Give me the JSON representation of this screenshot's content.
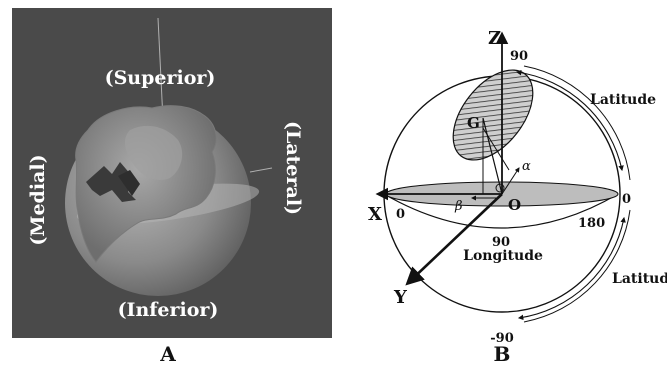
{
  "panel_a": {
    "caption": "A",
    "labels": {
      "superior": "(Superior)",
      "inferior": "(Inferior)",
      "medial": "(Medial)",
      "lateral": "(Lateral)"
    },
    "colors": {
      "background": "#4a4a4a",
      "sphere": "#8c8c8c",
      "text": "#ffffff"
    }
  },
  "panel_b": {
    "caption": "B",
    "axes": {
      "z": "Z",
      "x": "X",
      "y": "Y"
    },
    "points": {
      "origin": "O",
      "g": "G"
    },
    "angles": {
      "alpha": "α",
      "beta": "β"
    },
    "latitude_label_top": "Latitude",
    "latitude_label_bottom": "Latitude",
    "longitude_label": "Longitude",
    "values": {
      "lat_top": "90",
      "lat_zero": "0",
      "lat_bottom": "-90",
      "lon_zero": "0",
      "lon_90": "90",
      "lon_180": "180"
    }
  }
}
